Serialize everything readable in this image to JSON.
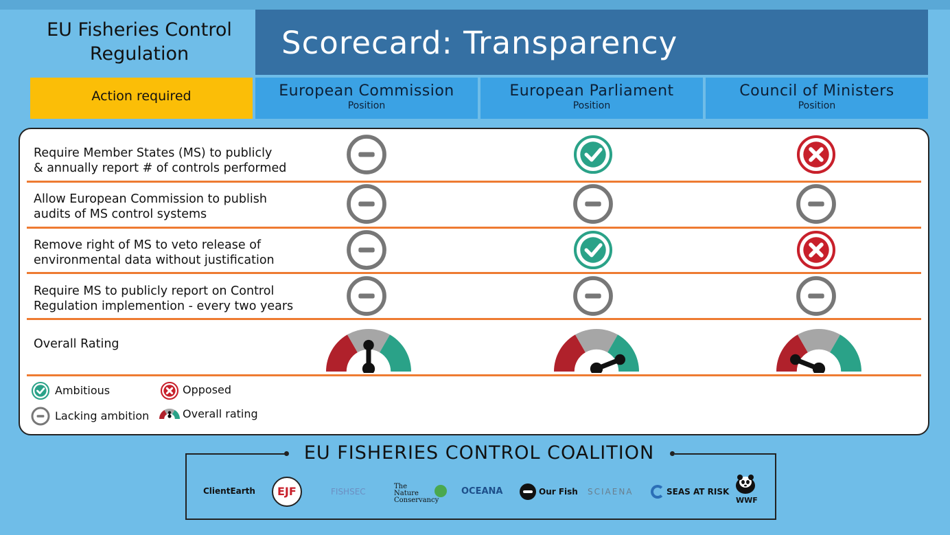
{
  "header": {
    "left_title_line1": "EU Fisheries Control",
    "left_title_line2": "Regulation",
    "main_title": "Scorecard: Transparency"
  },
  "columns": {
    "action": "Action required",
    "commission": {
      "name": "European Commission",
      "sub": "Position"
    },
    "parliament": {
      "name": "European Parliament",
      "sub": "Position"
    },
    "council": {
      "name": "Council of Ministers",
      "sub": "Position"
    }
  },
  "rows": [
    {
      "line1": "Require Member States (MS) to publicly",
      "line2": "& annually report # of controls performed",
      "commission": "lacking",
      "parliament": "ambitious",
      "council": "opposed"
    },
    {
      "line1": "Allow European Commission to publish",
      "line2": "audits of MS control systems",
      "commission": "lacking",
      "parliament": "lacking",
      "council": "lacking"
    },
    {
      "line1": "Remove right of MS to veto release of",
      "line2": "environmental data without justification",
      "commission": "lacking",
      "parliament": "ambitious",
      "council": "opposed"
    },
    {
      "line1": "Require MS to publicly report on Control",
      "line2": "Regulation implemention - every two years",
      "commission": "lacking",
      "parliament": "lacking",
      "council": "lacking"
    }
  ],
  "overall": {
    "label": "Overall Rating",
    "commission_level": 0.5,
    "parliament_level": 0.85,
    "council_level": 0.15
  },
  "legend": {
    "ambitious": "Ambitious",
    "opposed": "Opposed",
    "lacking": "Lacking ambition",
    "overall": "Overall rating"
  },
  "colors": {
    "ambitious": "#2aa288",
    "opposed": "#c8202b",
    "lacking": "#777777",
    "gauge_red": "#b0212b",
    "gauge_grey": "#a6a6a6",
    "gauge_green": "#2aa288",
    "divider": "#ee7b32"
  },
  "coalition": {
    "title": "EU FISHERIES CONTROL COALITION",
    "logos": [
      "ClientEarth",
      "EJF",
      "FISHSEC",
      "The Nature Conservancy",
      "OCEANA",
      "Our Fish",
      "SCIAENA",
      "SEAS AT RISK",
      "WWF"
    ]
  }
}
